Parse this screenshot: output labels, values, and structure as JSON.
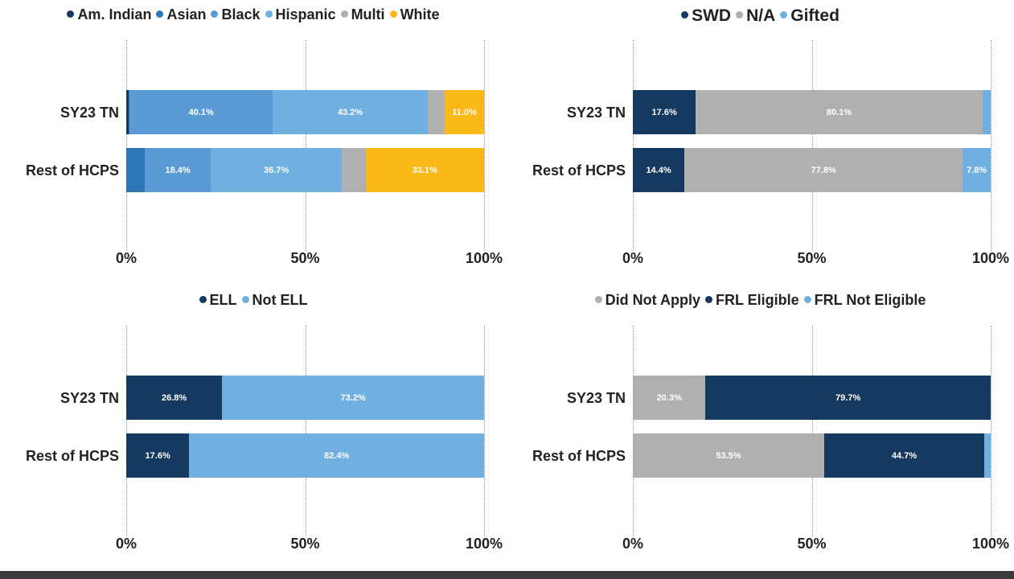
{
  "chart_data": [
    {
      "type": "bar",
      "orientation": "horizontal",
      "stacked": true,
      "categories": [
        "SY23 TN",
        "Rest of HCPS"
      ],
      "series": [
        {
          "name": "Am. Indian",
          "color": "#163A5F",
          "values": [
            0.7,
            0.0
          ]
        },
        {
          "name": "Asian",
          "color": "#2E75B6",
          "values": [
            0.2,
            5.2
          ]
        },
        {
          "name": "Black",
          "color": "#5B9BD5",
          "values": [
            40.1,
            18.4
          ]
        },
        {
          "name": "Hispanic",
          "color": "#70B0E0",
          "values": [
            43.2,
            36.7
          ]
        },
        {
          "name": "Multi",
          "color": "#B0B0B0",
          "values": [
            4.8,
            6.6
          ]
        },
        {
          "name": "White",
          "color": "#FBB918",
          "values": [
            11.0,
            33.1
          ]
        }
      ],
      "data_labels": [
        [
          "",
          "",
          "40.1%",
          "43.2%",
          "",
          "11.0%"
        ],
        [
          "",
          "",
          "18.4%",
          "36.7%",
          "",
          "33.1%"
        ]
      ],
      "xticks": [
        "0%",
        "50%",
        "100%"
      ],
      "xlim": [
        0,
        100
      ],
      "grid": true,
      "legend_position": "top"
    },
    {
      "type": "bar",
      "orientation": "horizontal",
      "stacked": true,
      "categories": [
        "SY23 TN",
        "Rest of HCPS"
      ],
      "series": [
        {
          "name": "SWD",
          "color": "#163A5F",
          "values": [
            17.6,
            14.4
          ]
        },
        {
          "name": "N/A",
          "color": "#B0B0B0",
          "values": [
            80.1,
            77.8
          ]
        },
        {
          "name": "Gifted",
          "color": "#70B0E0",
          "values": [
            2.3,
            7.8
          ]
        }
      ],
      "data_labels": [
        [
          "17.6%",
          "80.1%",
          ""
        ],
        [
          "14.4%",
          "77.8%",
          "7.8%"
        ]
      ],
      "xticks": [
        "0%",
        "50%",
        "100%"
      ],
      "xlim": [
        0,
        100
      ],
      "grid": true,
      "legend_position": "top"
    },
    {
      "type": "bar",
      "orientation": "horizontal",
      "stacked": true,
      "categories": [
        "SY23 TN",
        "Rest of HCPS"
      ],
      "series": [
        {
          "name": "ELL",
          "color": "#163A5F",
          "values": [
            26.8,
            17.6
          ]
        },
        {
          "name": "Not ELL",
          "color": "#70B0E0",
          "values": [
            73.2,
            82.4
          ]
        }
      ],
      "data_labels": [
        [
          "26.8%",
          "73.2%"
        ],
        [
          "17.6%",
          "82.4%"
        ]
      ],
      "xticks": [
        "0%",
        "50%",
        "100%"
      ],
      "xlim": [
        0,
        100
      ],
      "grid": true,
      "legend_position": "top"
    },
    {
      "type": "bar",
      "orientation": "horizontal",
      "stacked": true,
      "categories": [
        "SY23 TN",
        "Rest of HCPS"
      ],
      "series": [
        {
          "name": "Did Not Apply",
          "color": "#B0B0B0",
          "values": [
            20.3,
            53.5
          ]
        },
        {
          "name": "FRL Eligible",
          "color": "#163A5F",
          "values": [
            79.7,
            44.7
          ]
        },
        {
          "name": "FRL Not Eligible",
          "color": "#70B0E0",
          "values": [
            0.0,
            1.8
          ]
        }
      ],
      "data_labels": [
        [
          "20.3%",
          "79.7%",
          ""
        ],
        [
          "53.5%",
          "44.7%",
          ""
        ]
      ],
      "xticks": [
        "0%",
        "50%",
        "100%"
      ],
      "xlim": [
        0,
        100
      ],
      "grid": true,
      "legend_position": "top"
    }
  ]
}
